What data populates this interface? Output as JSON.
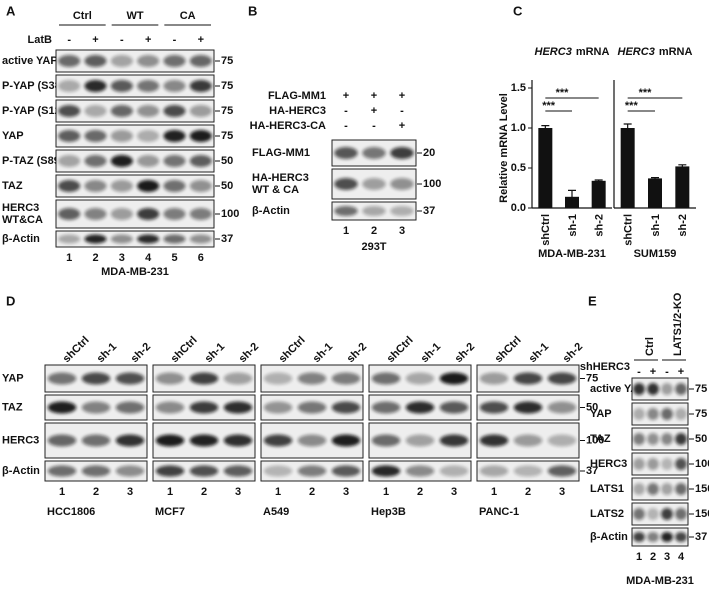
{
  "panels": {
    "A": {
      "label": "A",
      "groups": [
        "Ctrl",
        "WT",
        "CA"
      ],
      "treatment": "LatB",
      "signs": [
        "-",
        "+",
        "-",
        "+",
        "-",
        "+"
      ],
      "rows": [
        {
          "label": "active YAP",
          "marker": "75"
        },
        {
          "label": "P-YAP (S381)",
          "marker": "75"
        },
        {
          "label": "P-YAP (S127)",
          "marker": "75"
        },
        {
          "label": "YAP",
          "marker": "75"
        },
        {
          "label": "P-TAZ (S89)",
          "marker": "50"
        },
        {
          "label": "TAZ",
          "marker": "50"
        },
        {
          "label": [
            "HERC3",
            "WT&CA"
          ],
          "marker": "100"
        },
        {
          "label": "β-Actin",
          "marker": "37"
        }
      ],
      "lanes": [
        "1",
        "2",
        "3",
        "4",
        "5",
        "6"
      ],
      "cell": "MDA-MB-231"
    },
    "B": {
      "label": "B",
      "conditions": [
        {
          "label": "FLAG-MM1",
          "signs": [
            "+",
            "+",
            "+"
          ]
        },
        {
          "label": "HA-HERC3",
          "signs": [
            "-",
            "+",
            "-"
          ]
        },
        {
          "label": "HA-HERC3-CA",
          "signs": [
            "-",
            "-",
            "+"
          ]
        }
      ],
      "rows": [
        {
          "label": "FLAG-MM1",
          "marker": "20"
        },
        {
          "label": [
            "HA-HERC3",
            "WT & CA"
          ],
          "marker": "100"
        },
        {
          "label": "β-Actin",
          "marker": "37"
        }
      ],
      "lanes": [
        "1",
        "2",
        "3"
      ],
      "cell": "293T"
    },
    "C": {
      "label": "C"
    },
    "D": {
      "label": "D",
      "columns": [
        "shCtrl",
        "sh-1",
        "sh-2"
      ],
      "cells": [
        "HCC1806",
        "MCF7",
        "A549",
        "Hep3B",
        "PANC-1"
      ],
      "rows": [
        {
          "label": "YAP",
          "marker": "75"
        },
        {
          "label": "TAZ",
          "marker": "50"
        },
        {
          "label": "HERC3",
          "marker": "100"
        },
        {
          "label": "β-Actin",
          "marker": "37"
        }
      ],
      "lanes": [
        "1",
        "2",
        "3"
      ]
    },
    "E": {
      "label": "E",
      "groups": [
        "Ctrl",
        "LATS1/2-KO"
      ],
      "treatment": "shHERC3",
      "signs": [
        "-",
        "+",
        "-",
        "+"
      ],
      "rows": [
        {
          "label": "active YAP",
          "marker": "75"
        },
        {
          "label": "YAP",
          "marker": "75"
        },
        {
          "label": "TAZ",
          "marker": "50"
        },
        {
          "label": "HERC3",
          "marker": "100"
        },
        {
          "label": "LATS1",
          "marker": "150"
        },
        {
          "label": "LATS2",
          "marker": "150"
        },
        {
          "label": "β-Actin",
          "marker": "37"
        }
      ],
      "lanes": [
        "1",
        "2",
        "3",
        "4"
      ],
      "cell": "MDA-MB-231"
    }
  },
  "chart_data": [
    {
      "type": "bar",
      "title": [
        "HERC3",
        "mRNA"
      ],
      "ylabel": "Relative mRNA Level",
      "xlabel": "MDA-MB-231",
      "categories": [
        "shCtrl",
        "sh-1",
        "sh-2"
      ],
      "values": [
        1.0,
        0.14,
        0.34
      ],
      "errors": [
        0.03,
        0.08,
        0.01
      ],
      "color": "#111111",
      "ylim": [
        0,
        1.5
      ],
      "yticks": [
        {
          "value": 0,
          "label": "0.0"
        },
        0.5,
        {
          "value": 1,
          "label": "1.0"
        },
        1.5
      ],
      "significance": [
        "***",
        "***"
      ]
    },
    {
      "type": "bar",
      "title": [
        "HERC3",
        "mRNA"
      ],
      "xlabel": "SUM159",
      "categories": [
        "shCtrl",
        "sh-1",
        "sh-2"
      ],
      "values": [
        1.0,
        0.37,
        0.52
      ],
      "errors": [
        0.05,
        0.01,
        0.02
      ],
      "color": "#111111",
      "ylim": [
        0,
        1.5
      ],
      "significance": [
        "***",
        "***"
      ]
    }
  ]
}
